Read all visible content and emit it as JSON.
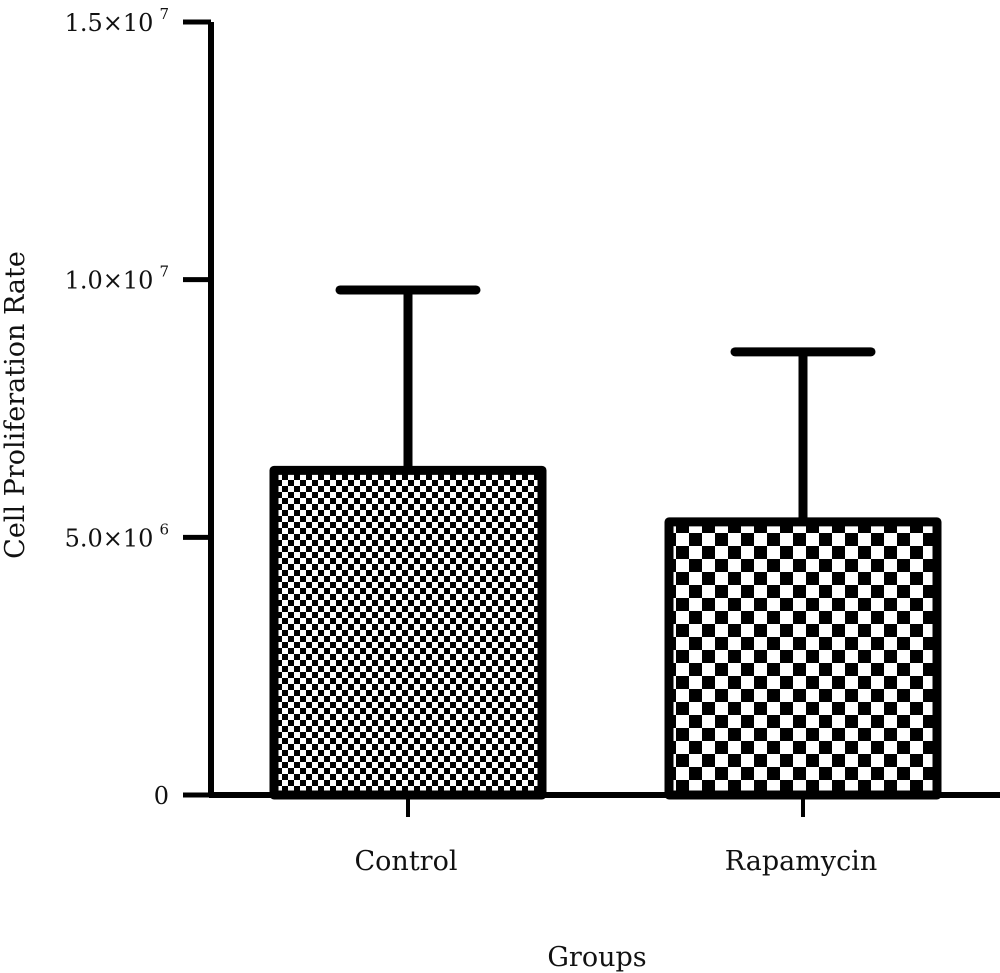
{
  "chart_data": {
    "type": "bar",
    "xlabel": "Groups",
    "ylabel": "Cell Proliferation Rate",
    "ylim": [
      0,
      15000000
    ],
    "y_ticks": [
      {
        "value": 0,
        "mantissa": "0",
        "exponent": ""
      },
      {
        "value": 5000000,
        "mantissa": "5.0×10",
        "exponent": "6"
      },
      {
        "value": 10000000,
        "mantissa": "1.0×10",
        "exponent": "7"
      },
      {
        "value": 15000000,
        "mantissa": "1.5×10",
        "exponent": "7"
      }
    ],
    "categories": [
      "Control",
      "Rapamycin"
    ],
    "values": [
      6300000,
      5300000
    ],
    "error_upper": [
      9800000,
      8600000
    ],
    "fill_patterns": [
      "fine-checker",
      "coarse-checker"
    ],
    "grid": false,
    "colors": {
      "bar_stroke": "#000000",
      "pattern_dark": "#000000",
      "pattern_light": "#ffffff"
    }
  }
}
